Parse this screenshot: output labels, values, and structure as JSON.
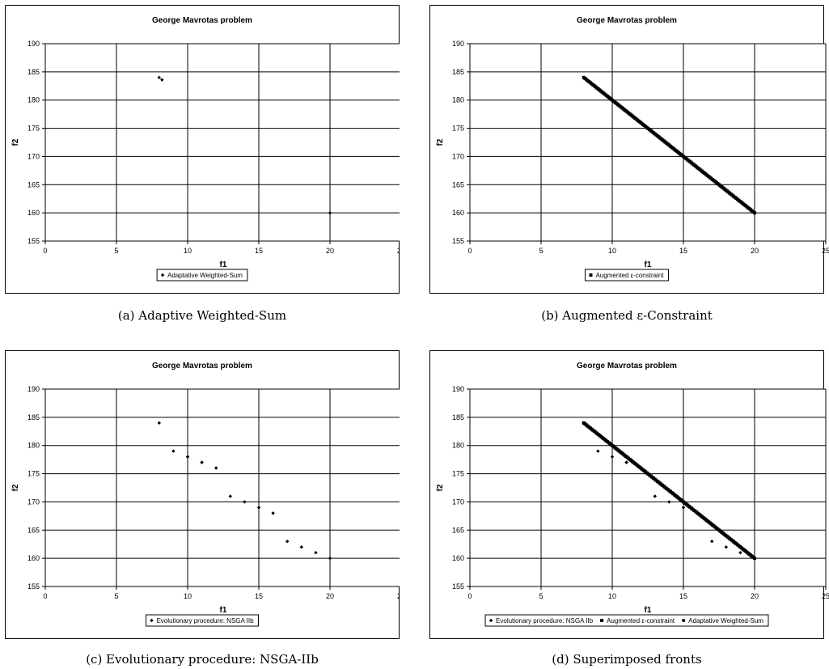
{
  "chart_data": [
    {
      "type": "scatter",
      "title": "George Mavrotas problem",
      "xlabel": "f1",
      "ylabel": "f2",
      "xlim": [
        0,
        25
      ],
      "ylim": [
        155,
        190
      ],
      "xticks": [
        "0",
        "5",
        "10",
        "15",
        "20",
        "25"
      ],
      "yticks": [
        "155",
        "160",
        "165",
        "170",
        "175",
        "180",
        "185",
        "190"
      ],
      "grid": true,
      "legend_position": "bottom",
      "series": [
        {
          "name": "Adaptative Weighted-Sum",
          "marker": "diamond",
          "x": [
            8,
            8.2,
            20
          ],
          "y": [
            184,
            183.6,
            160
          ]
        }
      ],
      "caption": "(a) Adaptive Weighted-Sum"
    },
    {
      "type": "scatter",
      "title": "George Mavrotas problem",
      "xlabel": "f1",
      "ylabel": "f2",
      "xlim": [
        0,
        25
      ],
      "ylim": [
        155,
        190
      ],
      "xticks": [
        "0",
        "5",
        "10",
        "15",
        "20",
        "25"
      ],
      "yticks": [
        "155",
        "160",
        "165",
        "170",
        "175",
        "180",
        "185",
        "190"
      ],
      "grid": true,
      "legend_position": "bottom",
      "series": [
        {
          "name": "Augmented ε-constraint",
          "marker": "square",
          "dense_line": true,
          "x": [
            8,
            20
          ],
          "y": [
            184,
            160
          ]
        }
      ],
      "caption": "(b) Augmented ε-Constraint"
    },
    {
      "type": "scatter",
      "title": "George Mavrotas problem",
      "xlabel": "f1",
      "ylabel": "f2",
      "xlim": [
        0,
        25
      ],
      "ylim": [
        155,
        190
      ],
      "xticks": [
        "0",
        "5",
        "10",
        "15",
        "20",
        "25"
      ],
      "yticks": [
        "155",
        "160",
        "165",
        "170",
        "175",
        "180",
        "185",
        "190"
      ],
      "grid": true,
      "legend_position": "bottom",
      "series": [
        {
          "name": "Evolutionary procedure: NSGA IIb",
          "marker": "diamond",
          "x": [
            8,
            9,
            10,
            10,
            11,
            11,
            12,
            13,
            14,
            15,
            16,
            17,
            18,
            19,
            20
          ],
          "y": [
            184,
            179,
            178,
            178,
            177,
            177,
            176,
            171,
            170,
            169,
            168,
            163,
            162,
            161,
            160
          ]
        }
      ],
      "caption": "(c) Evolutionary procedure: NSGA-IIb"
    },
    {
      "type": "scatter",
      "title": "George Mavrotas problem",
      "xlabel": "f1",
      "ylabel": "f2",
      "xlim": [
        0,
        25
      ],
      "ylim": [
        155,
        190
      ],
      "xticks": [
        "0",
        "5",
        "10",
        "15",
        "20",
        "25"
      ],
      "yticks": [
        "155",
        "160",
        "165",
        "170",
        "175",
        "180",
        "185",
        "190"
      ],
      "grid": true,
      "legend_position": "bottom",
      "series": [
        {
          "name": "Evolutionary procedure: NSGA IIb",
          "marker": "diamond",
          "x": [
            8,
            9,
            10,
            11,
            11,
            12,
            13,
            14,
            15,
            16,
            17,
            18,
            19,
            20
          ],
          "y": [
            184,
            179,
            178,
            177,
            177,
            176,
            171,
            170,
            169,
            168,
            163,
            162,
            161,
            160
          ]
        },
        {
          "name": "Augmented ε-constraint",
          "marker": "square",
          "dense_line": true,
          "x": [
            8,
            20
          ],
          "y": [
            184,
            160
          ]
        },
        {
          "name": "Adaptative Weighted-Sum",
          "marker": "circle",
          "x": [
            8,
            8.2,
            20
          ],
          "y": [
            184,
            183.6,
            160
          ]
        }
      ],
      "caption": "(d) Superimposed fronts"
    }
  ]
}
